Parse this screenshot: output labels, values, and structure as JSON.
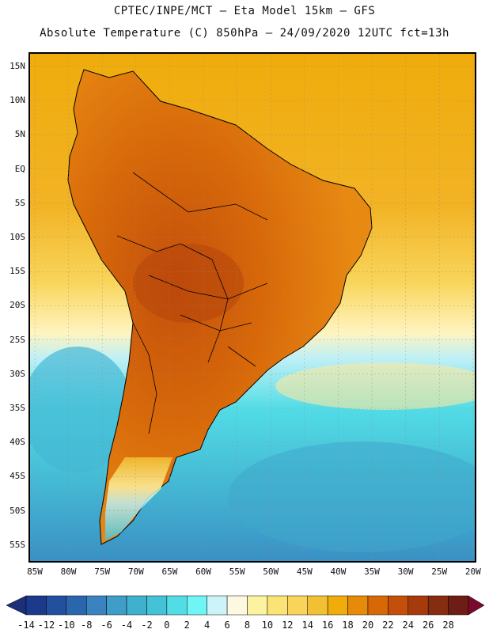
{
  "header": {
    "line1": "CPTEC/INPE/MCT –  Eta Model 15km – GFS",
    "line2": "Absolute Temperature (C) 850hPa – 24/09/2020 12UTC fct=13h"
  },
  "axes": {
    "latitudes": [
      "15N",
      "10N",
      "5N",
      "EQ",
      "5S",
      "10S",
      "15S",
      "20S",
      "25S",
      "30S",
      "35S",
      "40S",
      "45S",
      "50S",
      "55S"
    ],
    "longitudes": [
      "85W",
      "80W",
      "75W",
      "70W",
      "65W",
      "60W",
      "55W",
      "50W",
      "45W",
      "40W",
      "35W",
      "30W",
      "25W",
      "20W"
    ]
  },
  "colorbar": {
    "ticks": [
      "-14",
      "-12",
      "-10",
      "-8",
      "-6",
      "-4",
      "-2",
      "0",
      "2",
      "4",
      "6",
      "8",
      "10",
      "12",
      "14",
      "16",
      "18",
      "20",
      "22",
      "24",
      "26",
      "28"
    ],
    "colors": [
      "#1c3a8c",
      "#23509e",
      "#2a66ad",
      "#3a82c0",
      "#3f9ec8",
      "#40b0cf",
      "#44c3d8",
      "#52dce6",
      "#6ff5f5",
      "#cbf3f8",
      "#fff8e0",
      "#fdf2a0",
      "#fbe476",
      "#f8d55a",
      "#f2c133",
      "#efac0b",
      "#e58a09",
      "#d86806",
      "#c44f0a",
      "#a63a0c",
      "#862c10",
      "#6e1d14"
    ],
    "under_color": "#1c2f78",
    "over_color": "#7a0a2c"
  },
  "map": {
    "land_color": "#d86e1a",
    "ocean_tropics_color": "#eeaa1a",
    "ocean_midlat_color": "#f7d86a",
    "ocean_south_color": "#44c8dc",
    "coast_color": "#000000"
  }
}
